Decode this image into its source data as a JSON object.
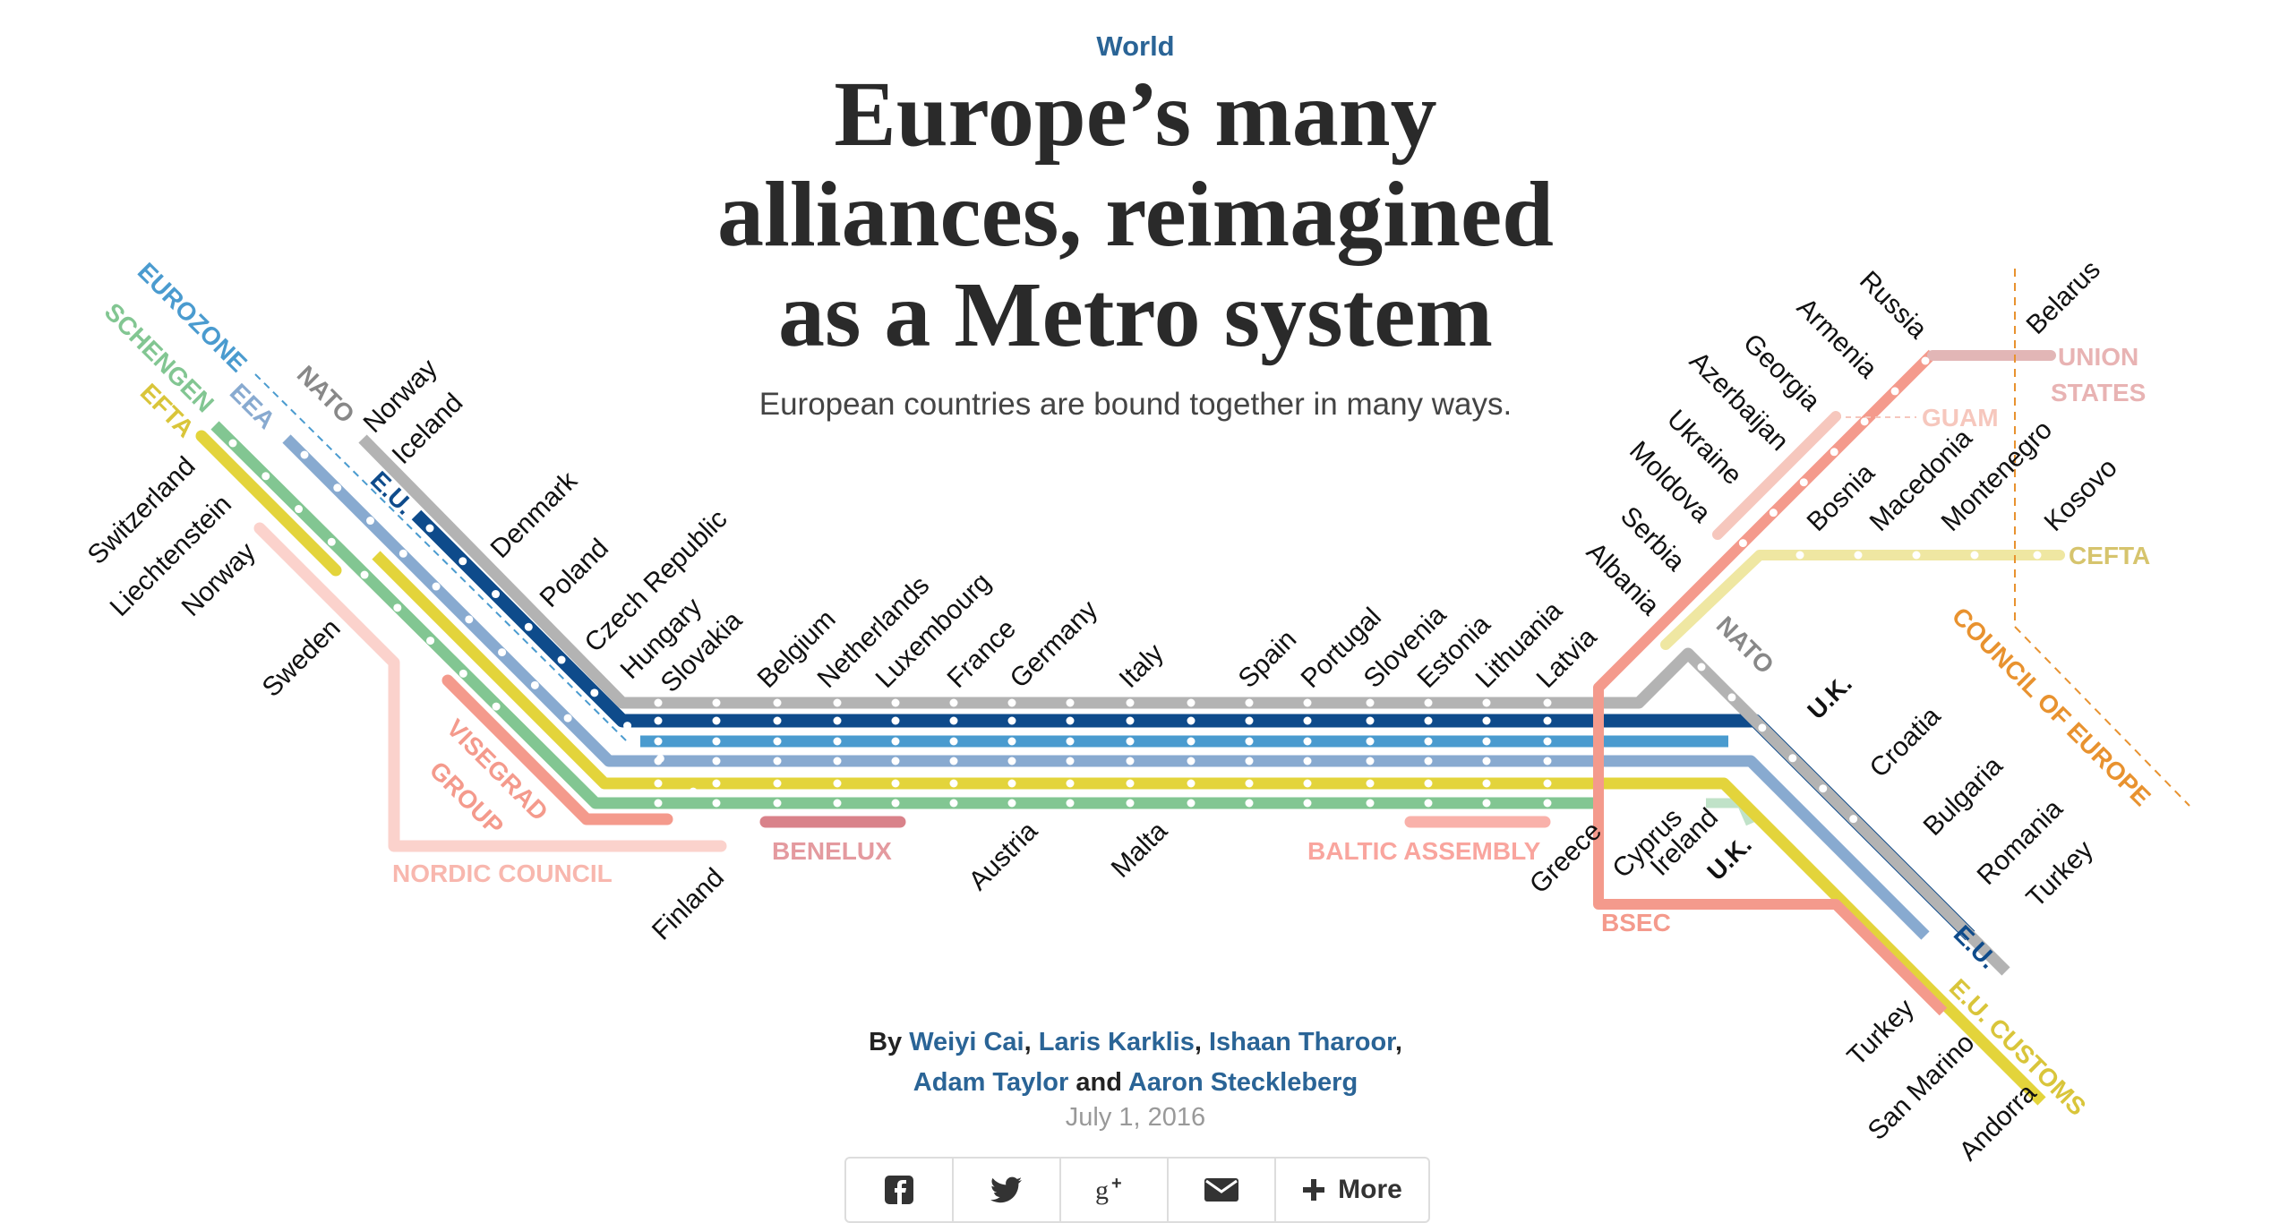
{
  "header": {
    "section": "World",
    "title_lines": [
      "Europe’s many",
      "alliances, reimagined",
      "as a Metro system"
    ],
    "subtitle": "European countries are bound together in many ways."
  },
  "byline": {
    "prefix": "By",
    "authors": [
      "Weiyi Cai",
      "Laris Karklis",
      "Ishaan Tharoor",
      "Adam Taylor",
      "Aaron Steckleberg"
    ],
    "comma": ",",
    "and": "and",
    "date": "July 1, 2016"
  },
  "share": {
    "buttons": [
      {
        "name": "facebook",
        "icon": "facebook-icon"
      },
      {
        "name": "twitter",
        "icon": "twitter-icon"
      },
      {
        "name": "google-plus",
        "icon": "google-plus-icon"
      },
      {
        "name": "email",
        "icon": "email-icon"
      }
    ],
    "more_label": "More"
  },
  "lines": [
    {
      "id": "nato",
      "label": "NATO",
      "color": "#b3b3b3"
    },
    {
      "id": "eu",
      "label": "E.U.",
      "color": "#0e4b8b"
    },
    {
      "id": "eurozone",
      "label": "EUROZONE",
      "color": "#4a9bcf"
    },
    {
      "id": "eea",
      "label": "EEA",
      "color": "#88aad0"
    },
    {
      "id": "schengen",
      "label": "SCHENGEN",
      "color": "#82c692"
    },
    {
      "id": "efta",
      "label": "EFTA",
      "color": "#e3d43b"
    },
    {
      "id": "eu_customs",
      "label": "E.U. CUSTOMS",
      "color": "#e3d43b"
    },
    {
      "id": "visegrad",
      "label": "VISEGRAD GROUP",
      "color": "#f49a8c"
    },
    {
      "id": "nordic",
      "label": "NORDIC COUNCIL",
      "color": "#fbd2cc"
    },
    {
      "id": "benelux",
      "label": "BENELUX",
      "color": "#d9828a"
    },
    {
      "id": "baltic",
      "label": "BALTIC ASSEMBLY",
      "color": "#f9b1aa"
    },
    {
      "id": "bsec",
      "label": "BSEC",
      "color": "#f49a8c"
    },
    {
      "id": "guam",
      "label": "GUAM",
      "color": "#f6c7bd"
    },
    {
      "id": "union_states",
      "label": "UNION STATES",
      "color": "#e2b6b6"
    },
    {
      "id": "cefta",
      "label": "CEFTA",
      "color": "#efe7a2"
    },
    {
      "id": "council",
      "label": "COUNCIL OF EUROPE",
      "color": "#e8922f"
    }
  ],
  "labels": {
    "uk_nato": "U.K.",
    "uk_eu": "U.K.",
    "nato_right": "NATO",
    "eu_right": "E.U.",
    "visegrad_line1": "VISEGRAD",
    "visegrad_line2": "GROUP",
    "union_line1": "UNION",
    "union_line2": "STATES"
  },
  "stations": {
    "left_nato": [
      "Norway",
      "Iceland",
      "Denmark",
      "Poland",
      "Czech Republic",
      "Hungary",
      "Slovakia"
    ],
    "left_efta": [
      "Switzerland",
      "Liechtenstein",
      "Norway",
      "Sweden"
    ],
    "top_trunk": [
      "Belgium",
      "Netherlands",
      "Luxembourg",
      "France",
      "Germany",
      "Italy",
      "Spain",
      "Portugal",
      "Slovenia",
      "Estonia",
      "Lithuania",
      "Latvia"
    ],
    "bottom_trunk": [
      "Finland",
      "Austria",
      "Malta",
      "Greece",
      "Cyprus",
      "Ireland"
    ],
    "east_upper": [
      "Russia",
      "Armenia",
      "Georgia",
      "Azerbaijan",
      "Ukraine",
      "Moldova",
      "Serbia",
      "Albania",
      "Belarus"
    ],
    "east_balkans": [
      "Bosnia",
      "Macedonia",
      "Montenegro",
      "Kosovo"
    ],
    "right_branch": [
      "Croatia",
      "Bulgaria",
      "Romania",
      "Turkey"
    ],
    "customs_branch": [
      "Turkey",
      "San Marino",
      "Andorra"
    ]
  }
}
